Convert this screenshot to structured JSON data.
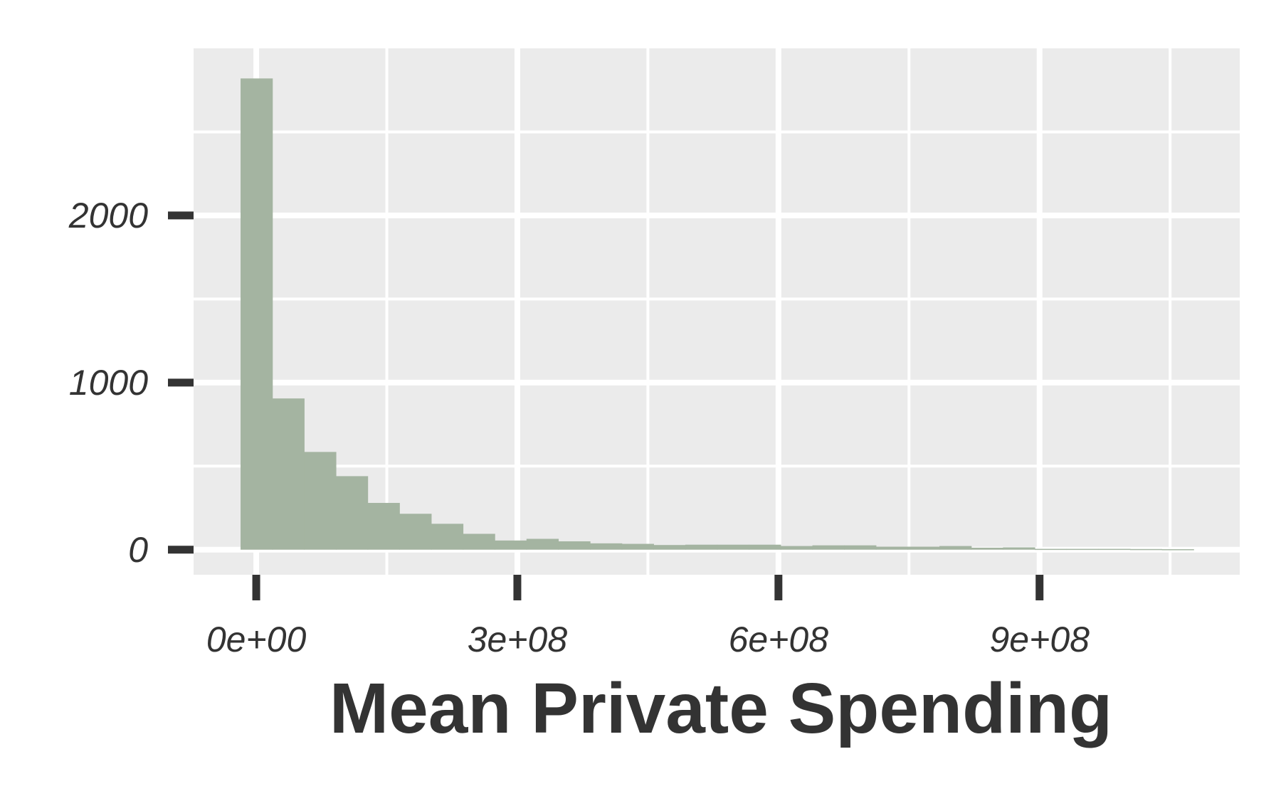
{
  "chart_data": {
    "type": "bar",
    "xlabel": "Mean Private Spending",
    "ylabel": "",
    "x_ticks": [
      {
        "value": 0,
        "label": "0e+00"
      },
      {
        "value": 300000000,
        "label": "3e+08"
      },
      {
        "value": 600000000,
        "label": "6e+08"
      },
      {
        "value": 900000000,
        "label": "9e+08"
      }
    ],
    "y_ticks": [
      {
        "value": 0,
        "label": "0"
      },
      {
        "value": 1000,
        "label": "1000"
      },
      {
        "value": 2000,
        "label": "2000"
      }
    ],
    "xlim": [
      -72000000,
      1130000000
    ],
    "ylim": [
      -150,
      3000
    ],
    "bin_width": 36500000,
    "bins": [
      {
        "x0": -18000000,
        "x1": 18500000,
        "count": 2820
      },
      {
        "x0": 18500000,
        "x1": 55000000,
        "count": 905
      },
      {
        "x0": 55000000,
        "x1": 91500000,
        "count": 585
      },
      {
        "x0": 91500000,
        "x1": 128000000,
        "count": 440
      },
      {
        "x0": 128000000,
        "x1": 164500000,
        "count": 280
      },
      {
        "x0": 164500000,
        "x1": 201000000,
        "count": 215
      },
      {
        "x0": 201000000,
        "x1": 237500000,
        "count": 155
      },
      {
        "x0": 237500000,
        "x1": 274000000,
        "count": 95
      },
      {
        "x0": 274000000,
        "x1": 310500000,
        "count": 55
      },
      {
        "x0": 310500000,
        "x1": 347000000,
        "count": 65
      },
      {
        "x0": 347000000,
        "x1": 383500000,
        "count": 50
      },
      {
        "x0": 383500000,
        "x1": 420000000,
        "count": 38
      },
      {
        "x0": 420000000,
        "x1": 456500000,
        "count": 35
      },
      {
        "x0": 456500000,
        "x1": 493000000,
        "count": 28
      },
      {
        "x0": 493000000,
        "x1": 529500000,
        "count": 30
      },
      {
        "x0": 529500000,
        "x1": 566000000,
        "count": 30
      },
      {
        "x0": 566000000,
        "x1": 602500000,
        "count": 30
      },
      {
        "x0": 602500000,
        "x1": 639000000,
        "count": 22
      },
      {
        "x0": 639000000,
        "x1": 675500000,
        "count": 26
      },
      {
        "x0": 675500000,
        "x1": 712000000,
        "count": 26
      },
      {
        "x0": 712000000,
        "x1": 748500000,
        "count": 18
      },
      {
        "x0": 748500000,
        "x1": 785000000,
        "count": 18
      },
      {
        "x0": 785000000,
        "x1": 821500000,
        "count": 22
      },
      {
        "x0": 821500000,
        "x1": 858000000,
        "count": 12
      },
      {
        "x0": 858000000,
        "x1": 894500000,
        "count": 14
      },
      {
        "x0": 894500000,
        "x1": 931000000,
        "count": 5
      },
      {
        "x0": 931000000,
        "x1": 967500000,
        "count": 5
      },
      {
        "x0": 967500000,
        "x1": 1004000000,
        "count": 5
      },
      {
        "x0": 1004000000,
        "x1": 1040500000,
        "count": 4
      },
      {
        "x0": 1040500000,
        "x1": 1077000000,
        "count": 3
      }
    ],
    "colors": {
      "bar": "#a4b4a1",
      "panel": "#ebebeb",
      "grid": "#ffffff",
      "text": "#333333",
      "ticks": "#333333"
    },
    "grid": true,
    "legend": "none"
  }
}
